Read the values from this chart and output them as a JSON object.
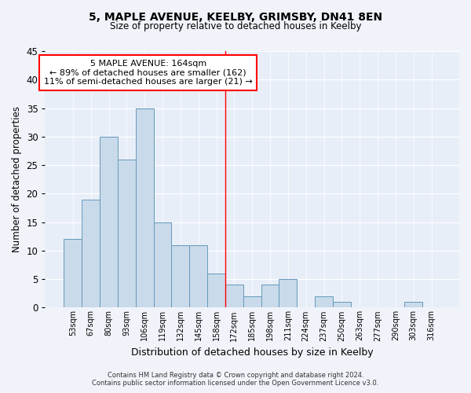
{
  "title1": "5, MAPLE AVENUE, KEELBY, GRIMSBY, DN41 8EN",
  "title2": "Size of property relative to detached houses in Keelby",
  "xlabel": "Distribution of detached houses by size in Keelby",
  "ylabel": "Number of detached properties",
  "bin_labels": [
    "53sqm",
    "67sqm",
    "80sqm",
    "93sqm",
    "106sqm",
    "119sqm",
    "132sqm",
    "145sqm",
    "158sqm",
    "172sqm",
    "185sqm",
    "198sqm",
    "211sqm",
    "224sqm",
    "237sqm",
    "250sqm",
    "263sqm",
    "277sqm",
    "290sqm",
    "303sqm",
    "316sqm"
  ],
  "bar_values": [
    12,
    19,
    30,
    26,
    35,
    15,
    11,
    11,
    6,
    4,
    2,
    4,
    5,
    0,
    2,
    1,
    0,
    0,
    0,
    1,
    0
  ],
  "bar_color": "#c9daea",
  "bar_edge_color": "#6699bb",
  "ylim": [
    0,
    45
  ],
  "yticks": [
    0,
    5,
    10,
    15,
    20,
    25,
    30,
    35,
    40,
    45
  ],
  "property_line_x": 8.5,
  "annotation_line1": "5 MAPLE AVENUE: 164sqm",
  "annotation_line2": "← 89% of detached houses are smaller (162)",
  "annotation_line3": "11% of semi-detached houses are larger (21) →",
  "footnote": "Contains HM Land Registry data © Crown copyright and database right 2024.\nContains public sector information licensed under the Open Government Licence v3.0.",
  "bg_color": "#f0f4fa",
  "plot_bg_color": "#e8eef8"
}
